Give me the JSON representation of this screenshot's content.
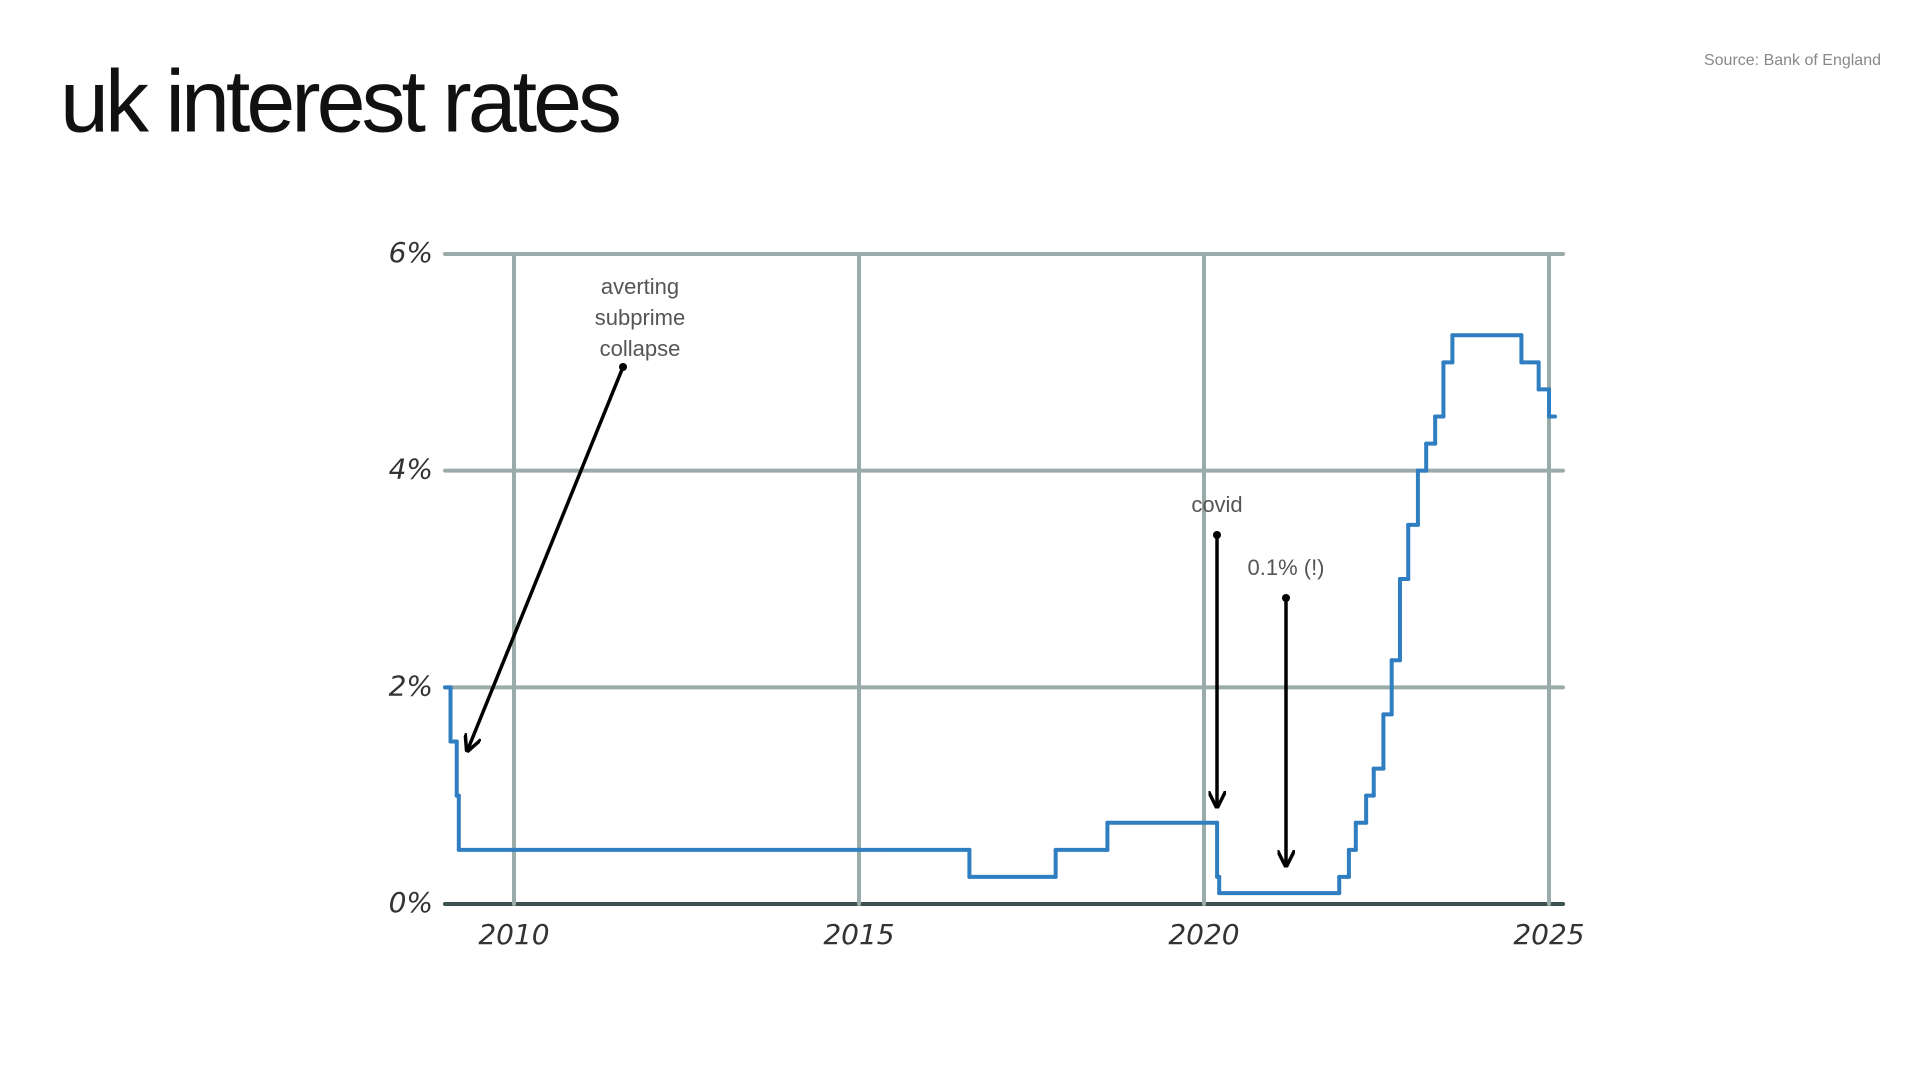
{
  "chart_data": {
    "type": "step-line",
    "title": "uk interest rates",
    "source": "Source: Bank of England",
    "x": [
      2009.0,
      2009.08,
      2009.17,
      2009.2,
      2016.6,
      2017.85,
      2018.6,
      2020.19,
      2020.22,
      2021.96,
      2022.1,
      2022.2,
      2022.35,
      2022.46,
      2022.6,
      2022.72,
      2022.84,
      2022.96,
      2023.1,
      2023.22,
      2023.35,
      2023.47,
      2023.6,
      2024.6,
      2024.85,
      2025.0
    ],
    "values": [
      2.0,
      1.5,
      1.0,
      0.5,
      0.25,
      0.5,
      0.75,
      0.25,
      0.1,
      0.25,
      0.5,
      0.75,
      1.0,
      1.25,
      1.75,
      2.25,
      3.0,
      3.5,
      4.0,
      4.25,
      4.5,
      5.0,
      5.25,
      5.0,
      4.75,
      4.5
    ],
    "color": "#2f7ec1",
    "xlim": [
      2009,
      2025
    ],
    "ylim": [
      0,
      6
    ],
    "xticks": [
      2010,
      2015,
      2020,
      2025
    ],
    "yticks": [
      {
        "value": 0,
        "label": "0%"
      },
      {
        "value": 2,
        "label": "2%"
      },
      {
        "value": 4,
        "label": "4%"
      },
      {
        "value": 6,
        "label": "6%"
      }
    ],
    "grid": true,
    "annotations": [
      {
        "lines": [
          "averting",
          "subprime",
          "collapse"
        ]
      },
      {
        "lines": [
          "covid"
        ]
      },
      {
        "lines": [
          "0.1% (!)"
        ]
      }
    ]
  }
}
